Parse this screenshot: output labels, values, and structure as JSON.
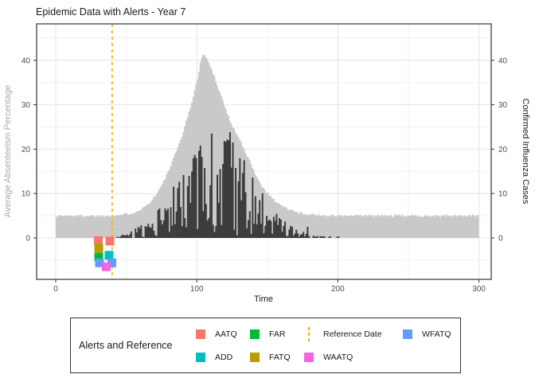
{
  "chart_data": {
    "type": "area",
    "title": "Epidemic Data with Alerts - Year 7",
    "x_axis": {
      "label": "Time",
      "ticks": [
        0,
        100,
        200,
        300
      ],
      "minor_ticks": [
        50,
        150,
        250
      ],
      "range": [
        -13,
        313
      ]
    },
    "y_left": {
      "label": "Average Absenteeism Percentage",
      "ticks": [
        0,
        10,
        20,
        30,
        40
      ],
      "minor_ticks": [
        -5,
        5,
        15,
        25,
        35,
        45
      ],
      "range": [
        -9.3,
        48.2
      ]
    },
    "y_right": {
      "label": "Confirmed Influenza Cases",
      "ticks": [
        0,
        10,
        20,
        30,
        40
      ]
    },
    "background": {
      "panel_fill": "#ffffff",
      "panel_border": "#333333",
      "grid_major": "#e4e4e4",
      "grid_minor": "#f1f1f1",
      "tick_color": "#333333",
      "tick_label_color": "#4d4d4d"
    },
    "series": [
      {
        "name": "average_absenteeism_percentage",
        "axis": "left",
        "style": "area-steps",
        "color": "#c9c9c9",
        "noise_amplitude": 0.3,
        "anchors": [
          [
            0,
            5
          ],
          [
            5,
            5
          ],
          [
            10,
            5
          ],
          [
            15,
            5
          ],
          [
            20,
            5
          ],
          [
            25,
            5
          ],
          [
            30,
            5
          ],
          [
            35,
            5
          ],
          [
            40,
            5.05
          ],
          [
            45,
            5.2
          ],
          [
            50,
            5.4
          ],
          [
            55,
            5.8
          ],
          [
            60,
            6.5
          ],
          [
            65,
            7.6
          ],
          [
            70,
            9.5
          ],
          [
            75,
            12
          ],
          [
            80,
            15.5
          ],
          [
            85,
            19.5
          ],
          [
            90,
            24
          ],
          [
            95,
            29.5
          ],
          [
            98,
            33
          ],
          [
            100,
            36
          ],
          [
            102,
            39.5
          ],
          [
            104,
            41.3
          ],
          [
            106,
            40.8
          ],
          [
            108,
            39.5
          ],
          [
            110,
            38
          ],
          [
            113,
            35.5
          ],
          [
            115,
            33.5
          ],
          [
            118,
            31
          ],
          [
            120,
            29
          ],
          [
            123,
            26.5
          ],
          [
            125,
            25
          ],
          [
            128,
            23.5
          ],
          [
            130,
            22
          ],
          [
            133,
            20
          ],
          [
            135,
            18.5
          ],
          [
            138,
            16.8
          ],
          [
            140,
            15.2
          ],
          [
            143,
            13.2
          ],
          [
            145,
            12
          ],
          [
            148,
            10.8
          ],
          [
            150,
            10
          ],
          [
            153,
            9
          ],
          [
            155,
            8.4
          ],
          [
            158,
            7.7
          ],
          [
            160,
            7.2
          ],
          [
            163,
            6.7
          ],
          [
            165,
            6.4
          ],
          [
            168,
            6
          ],
          [
            170,
            5.8
          ],
          [
            175,
            5.5
          ],
          [
            180,
            5.3
          ],
          [
            185,
            5.2
          ],
          [
            190,
            5.1
          ],
          [
            195,
            5.05
          ],
          [
            200,
            5
          ],
          [
            210,
            5
          ],
          [
            220,
            5
          ],
          [
            230,
            5
          ],
          [
            240,
            5
          ],
          [
            250,
            5
          ],
          [
            260,
            5
          ],
          [
            270,
            5
          ],
          [
            280,
            5
          ],
          [
            290,
            5
          ],
          [
            300,
            5
          ]
        ]
      },
      {
        "name": "confirmed_influenza_cases",
        "axis": "right",
        "style": "spiky-bars",
        "color": "#3c3c3c",
        "t_start": 41,
        "t_end": 205,
        "envelope": [
          [
            40,
            0
          ],
          [
            42,
            0.5
          ],
          [
            45,
            1
          ],
          [
            48,
            0.7
          ],
          [
            50,
            1.2
          ],
          [
            55,
            2
          ],
          [
            60,
            3
          ],
          [
            63,
            3.5
          ],
          [
            65,
            4
          ],
          [
            68,
            5
          ],
          [
            70,
            6
          ],
          [
            73,
            7
          ],
          [
            75,
            8
          ],
          [
            78,
            9
          ],
          [
            80,
            10
          ],
          [
            83,
            12
          ],
          [
            85,
            13
          ],
          [
            88,
            15
          ],
          [
            90,
            16
          ],
          [
            93,
            17
          ],
          [
            95,
            18
          ],
          [
            98,
            19
          ],
          [
            100,
            20
          ],
          [
            103,
            21
          ],
          [
            105,
            21.5
          ],
          [
            108,
            22.5
          ],
          [
            110,
            23.5
          ],
          [
            113,
            21
          ],
          [
            115,
            22
          ],
          [
            118,
            22.5
          ],
          [
            120,
            23
          ],
          [
            123,
            23.8
          ],
          [
            125,
            22
          ],
          [
            128,
            20
          ],
          [
            130,
            19
          ],
          [
            133,
            17.5
          ],
          [
            135,
            16
          ],
          [
            138,
            14.5
          ],
          [
            140,
            13
          ],
          [
            143,
            11.5
          ],
          [
            145,
            10.5
          ],
          [
            148,
            9
          ],
          [
            150,
            8
          ],
          [
            153,
            7
          ],
          [
            155,
            6
          ],
          [
            158,
            5
          ],
          [
            160,
            4.2
          ],
          [
            163,
            3.6
          ],
          [
            165,
            3
          ],
          [
            168,
            2.5
          ],
          [
            170,
            2
          ],
          [
            173,
            1.7
          ],
          [
            175,
            1.4
          ],
          [
            178,
            1.1
          ],
          [
            180,
            0.9
          ],
          [
            183,
            0.7
          ],
          [
            185,
            0.5
          ],
          [
            188,
            0.4
          ],
          [
            190,
            0.6
          ],
          [
            193,
            0.3
          ],
          [
            195,
            0.5
          ],
          [
            198,
            0.2
          ],
          [
            200,
            0.4
          ],
          [
            203,
            0.1
          ],
          [
            205,
            0
          ]
        ],
        "forced_spikes": [
          [
            110,
            23.5
          ],
          [
            123,
            23.8
          ],
          [
            178,
            2.5
          ]
        ]
      }
    ],
    "reference_date": 40,
    "reference_line": {
      "color": "#FFA500",
      "dash": [
        4,
        4
      ],
      "width": 1.5
    },
    "alerts": [
      {
        "name": "AATQ",
        "color": "#F8766D",
        "points": [
          [
            30.2,
            -0.6
          ],
          [
            38.4,
            -0.7
          ]
        ]
      },
      {
        "name": "FATQ",
        "color": "#B79F00",
        "points": [
          [
            30.5,
            -2.3
          ]
        ]
      },
      {
        "name": "FAR",
        "color": "#00BA38",
        "points": [
          [
            30.5,
            -4.3
          ]
        ]
      },
      {
        "name": "ADD",
        "color": "#00BFC4",
        "points": [
          [
            37.8,
            -3.9
          ]
        ]
      },
      {
        "name": "WFATQ",
        "color": "#619CFF",
        "points": [
          [
            31,
            -5.6
          ],
          [
            39.8,
            -5.6
          ]
        ]
      },
      {
        "name": "WAATQ",
        "color": "#F564E3",
        "points": [
          [
            35.8,
            -6.5
          ]
        ]
      }
    ],
    "marker_size_px": 11,
    "noise_seed": 1337
  },
  "legend": {
    "title": "Alerts and Reference",
    "items": [
      {
        "label": "AATQ",
        "color": "#F8766D",
        "type": "square"
      },
      {
        "label": "ADD",
        "color": "#00BFC4",
        "type": "square"
      },
      {
        "label": "FAR",
        "color": "#00BA38",
        "type": "square"
      },
      {
        "label": "FATQ",
        "color": "#B79F00",
        "type": "square"
      },
      {
        "label": "Reference Date",
        "color": "#FFA500",
        "type": "dashed-line"
      },
      {
        "label": "WAATQ",
        "color": "#F564E3",
        "type": "square"
      },
      {
        "label": "WFATQ",
        "color": "#619CFF",
        "type": "square"
      }
    ]
  }
}
